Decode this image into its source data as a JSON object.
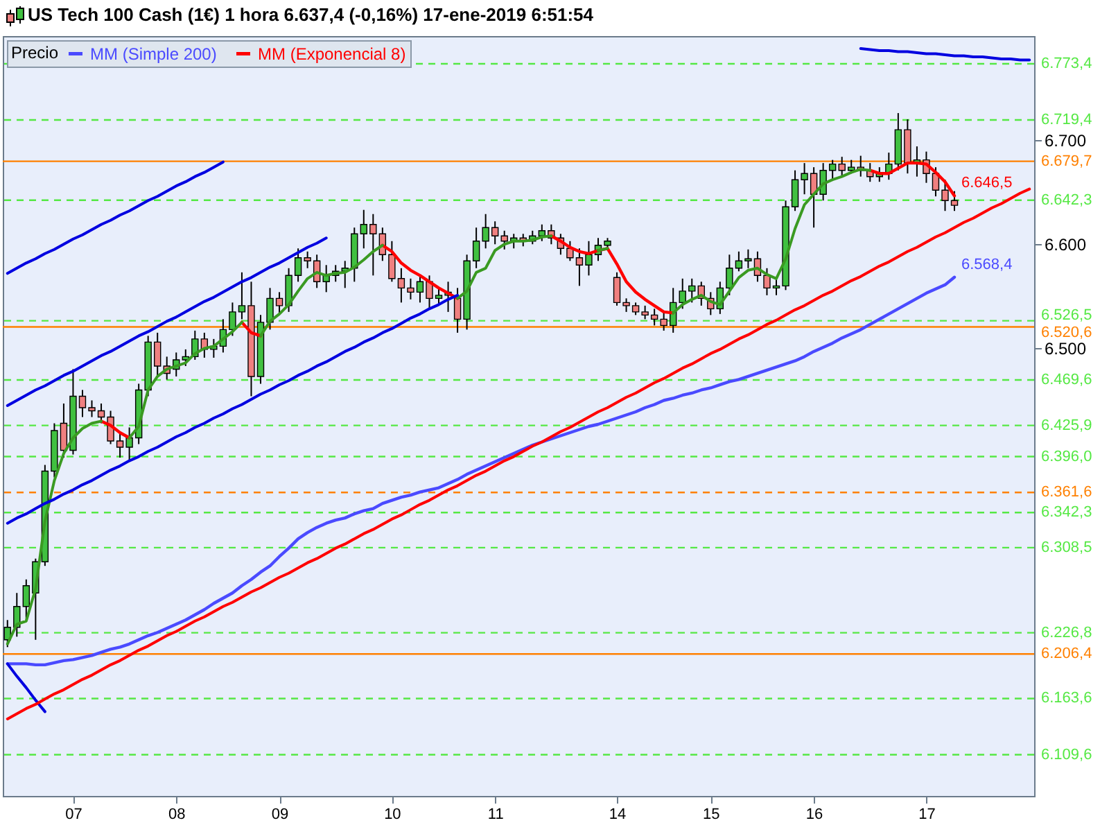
{
  "chart_data": {
    "type": "candlestick",
    "title": "US Tech 100 Cash (1€) 1 hora 6.637,4 (-0,16%) 17-ene-2019 6:51:54",
    "legend_title": "Precio",
    "legend": "top left",
    "ylim": [
      6070,
      6800
    ],
    "yticks": [
      {
        "value": 6500,
        "label": "6.500"
      },
      {
        "value": 6600,
        "label": "6.600"
      },
      {
        "value": 6700,
        "label": "6.700"
      }
    ],
    "categories": [
      null,
      null,
      null,
      null,
      null,
      null,
      null,
      "07",
      null,
      null,
      null,
      null,
      null,
      null,
      null,
      null,
      null,
      null,
      "08",
      null,
      null,
      null,
      null,
      null,
      null,
      null,
      null,
      null,
      null,
      "09",
      null,
      null,
      null,
      null,
      null,
      null,
      null,
      null,
      null,
      null,
      null,
      "10",
      null,
      null,
      null,
      null,
      null,
      null,
      null,
      null,
      null,
      null,
      "11",
      null,
      null,
      null,
      null,
      null,
      null,
      null,
      null,
      null,
      null,
      null,
      null,
      "14",
      null,
      null,
      null,
      null,
      null,
      null,
      null,
      null,
      null,
      "15",
      null,
      null,
      null,
      null,
      null,
      null,
      null,
      null,
      null,
      null,
      "16",
      null,
      null,
      null,
      null,
      null,
      null,
      null,
      null,
      null,
      null,
      null,
      "17",
      null,
      null,
      null,
      null,
      null,
      null,
      null,
      null,
      null,
      null,
      null
    ],
    "ohlc": [
      [
        6220,
        6239,
        6213,
        6232
      ],
      [
        6232,
        6265,
        6223,
        6252
      ],
      [
        6252,
        6278,
        6239,
        6272
      ],
      [
        6265,
        6298,
        6220,
        6295
      ],
      [
        6295,
        6388,
        6291,
        6382
      ],
      [
        6382,
        6428,
        6376,
        6421
      ],
      [
        6428,
        6447,
        6395,
        6402
      ],
      [
        6402,
        6480,
        6398,
        6454
      ],
      [
        6454,
        6460,
        6434,
        6443
      ],
      [
        6443,
        6450,
        6434,
        6440
      ],
      [
        6440,
        6447,
        6428,
        6434
      ],
      [
        6434,
        6440,
        6408,
        6411
      ],
      [
        6411,
        6418,
        6395,
        6405
      ],
      [
        6405,
        6424,
        6391,
        6414
      ],
      [
        6414,
        6466,
        6408,
        6460
      ],
      [
        6460,
        6512,
        6454,
        6506
      ],
      [
        6506,
        6515,
        6473,
        6483
      ],
      [
        6483,
        6492,
        6470,
        6476
      ],
      [
        6480,
        6496,
        6473,
        6489
      ],
      [
        6489,
        6499,
        6483,
        6492
      ],
      [
        6492,
        6517,
        6489,
        6509
      ],
      [
        6509,
        6515,
        6491,
        6499
      ],
      [
        6499,
        6509,
        6491,
        6502
      ],
      [
        6502,
        6528,
        6496,
        6518
      ],
      [
        6518,
        6544,
        6512,
        6535
      ],
      [
        6535,
        6573,
        6528,
        6541
      ],
      [
        6541,
        6564,
        6454,
        6473
      ],
      [
        6473,
        6532,
        6466,
        6525
      ],
      [
        6525,
        6558,
        6518,
        6548
      ],
      [
        6548,
        6554,
        6532,
        6541
      ],
      [
        6541,
        6577,
        6535,
        6570
      ],
      [
        6570,
        6596,
        6564,
        6587
      ],
      [
        6587,
        6593,
        6577,
        6584
      ],
      [
        6584,
        6590,
        6558,
        6564
      ],
      [
        6564,
        6580,
        6554,
        6570
      ],
      [
        6570,
        6580,
        6564,
        6574
      ],
      [
        6574,
        6584,
        6558,
        6577
      ],
      [
        6577,
        6616,
        6564,
        6610
      ],
      [
        6610,
        6633,
        6596,
        6619
      ],
      [
        6619,
        6629,
        6570,
        6610
      ],
      [
        6610,
        6616,
        6584,
        6590
      ],
      [
        6590,
        6603,
        6564,
        6567
      ],
      [
        6567,
        6577,
        6544,
        6558
      ],
      [
        6558,
        6567,
        6547,
        6554
      ],
      [
        6554,
        6570,
        6544,
        6564
      ],
      [
        6564,
        6570,
        6538,
        6548
      ],
      [
        6548,
        6558,
        6541,
        6551
      ],
      [
        6551,
        6564,
        6535,
        6554
      ],
      [
        6548,
        6558,
        6515,
        6528
      ],
      [
        6528,
        6590,
        6518,
        6584
      ],
      [
        6584,
        6616,
        6577,
        6603
      ],
      [
        6603,
        6629,
        6596,
        6616
      ],
      [
        6616,
        6622,
        6600,
        6608
      ],
      [
        6608,
        6613,
        6595,
        6603
      ],
      [
        6603,
        6610,
        6596,
        6606
      ],
      [
        6606,
        6610,
        6598,
        6603
      ],
      [
        6603,
        6613,
        6600,
        6608
      ],
      [
        6608,
        6619,
        6603,
        6613
      ],
      [
        6613,
        6619,
        6600,
        6606
      ],
      [
        6606,
        6610,
        6590,
        6596
      ],
      [
        6596,
        6603,
        6584,
        6587
      ],
      [
        6587,
        6596,
        6560,
        6580
      ],
      [
        6580,
        6603,
        6570,
        6590
      ],
      [
        6590,
        6606,
        6584,
        6599
      ],
      [
        6599,
        6606,
        6596,
        6603
      ],
      [
        6568,
        6573,
        6541,
        6544
      ],
      [
        6544,
        6548,
        6535,
        6541
      ],
      [
        6541,
        6544,
        6532,
        6535
      ],
      [
        6535,
        6541,
        6528,
        6532
      ],
      [
        6532,
        6538,
        6522,
        6528
      ],
      [
        6528,
        6535,
        6517,
        6522
      ],
      [
        6522,
        6558,
        6515,
        6544
      ],
      [
        6544,
        6567,
        6538,
        6555
      ],
      [
        6555,
        6567,
        6544,
        6560
      ],
      [
        6560,
        6564,
        6541,
        6548
      ],
      [
        6548,
        6554,
        6532,
        6538
      ],
      [
        6538,
        6564,
        6533,
        6558
      ],
      [
        6558,
        6590,
        6551,
        6577
      ],
      [
        6577,
        6593,
        6574,
        6584
      ],
      [
        6584,
        6595,
        6577,
        6586
      ],
      [
        6586,
        6593,
        6564,
        6570
      ],
      [
        6570,
        6577,
        6551,
        6558
      ],
      [
        6558,
        6567,
        6551,
        6560
      ],
      [
        6560,
        6642,
        6556,
        6636
      ],
      [
        6636,
        6671,
        6632,
        6662
      ],
      [
        6662,
        6678,
        6648,
        6668
      ],
      [
        6668,
        6674,
        6616,
        6648
      ],
      [
        6648,
        6678,
        6642,
        6671
      ],
      [
        6671,
        6681,
        6662,
        6677
      ],
      [
        6677,
        6684,
        6665,
        6671
      ],
      [
        6671,
        6681,
        6668,
        6674
      ],
      [
        6674,
        6685,
        6665,
        6671
      ],
      [
        6671,
        6678,
        6660,
        6665
      ],
      [
        6665,
        6674,
        6660,
        6668
      ],
      [
        6668,
        6688,
        6662,
        6677
      ],
      [
        6677,
        6726,
        6671,
        6710
      ],
      [
        6710,
        6720,
        6668,
        6678
      ],
      [
        6678,
        6694,
        6665,
        6681
      ],
      [
        6681,
        6689,
        6659,
        6668
      ],
      [
        6668,
        6674,
        6646,
        6652
      ],
      [
        6652,
        6662,
        6632,
        6642
      ],
      [
        6642,
        6651,
        6632,
        6637.4
      ],
      null,
      null,
      null,
      null,
      null,
      null,
      null,
      null
    ],
    "series": [
      {
        "name": "MM (Simple 200)",
        "type": "line",
        "color": "#4a4aff",
        "values": [
          6197,
          6197,
          6197,
          6196,
          6196,
          6198,
          6200,
          6201,
          6203,
          6205,
          6208,
          6211,
          6213,
          6216,
          6220,
          6224,
          6227,
          6231,
          6235,
          6239,
          6244,
          6249,
          6255,
          6260,
          6265,
          6272,
          6278,
          6285,
          6291,
          6300,
          6308,
          6317,
          6323,
          6328,
          6332,
          6335,
          6337,
          6341,
          6344,
          6346,
          6351,
          6354,
          6357,
          6359,
          6362,
          6364,
          6366,
          6370,
          6374,
          6379,
          6383,
          6387,
          6391,
          6395,
          6399,
          6403,
          6407,
          6410,
          6413,
          6416,
          6419,
          6422,
          6425,
          6427,
          6430,
          6433,
          6436,
          6439,
          6443,
          6446,
          6450,
          6452,
          6455,
          6457,
          6460,
          6462,
          6465,
          6468,
          6470,
          6473,
          6476,
          6479,
          6482,
          6485,
          6488,
          6492,
          6497,
          6501,
          6505,
          6510,
          6514,
          6518,
          6523,
          6528,
          6533,
          6538,
          6543,
          6548,
          6553,
          6557,
          6561,
          6568.4,
          null,
          null,
          null,
          null,
          null,
          null,
          null,
          null
        ],
        "value_labels": [
          null,
          null,
          null,
          null,
          null,
          null,
          null,
          null,
          null,
          null,
          null,
          null,
          null,
          null,
          null,
          null,
          null,
          null,
          null,
          null,
          null,
          null,
          null,
          null,
          null,
          null,
          null,
          null,
          null,
          null,
          null,
          null,
          null,
          null,
          null,
          null,
          null,
          null,
          null,
          null,
          null,
          null,
          null,
          null,
          null,
          null,
          null,
          null,
          null,
          null,
          null,
          null,
          null,
          null,
          null,
          null,
          null,
          null,
          null,
          null,
          null,
          null,
          null,
          null,
          null,
          null,
          null,
          null,
          null,
          null,
          null,
          null,
          null,
          null,
          null,
          null,
          null,
          null,
          null,
          null,
          null,
          null,
          null,
          null,
          null,
          null,
          null,
          null,
          null,
          null,
          null,
          null,
          null,
          null,
          null,
          null,
          null,
          null,
          null,
          null,
          null,
          "6.568,4",
          null,
          null,
          null,
          null,
          null,
          null,
          null,
          null
        ]
      },
      {
        "name": "MM (Exponencial 8)",
        "type": "line",
        "color": "#ff0000",
        "values": [
          null,
          null,
          null,
          null,
          null,
          null,
          null,
          null,
          null,
          null,
          6430,
          6426,
          6419,
          6414,
          null,
          null,
          null,
          null,
          null,
          null,
          null,
          null,
          null,
          null,
          null,
          6525,
          6515,
          6512,
          null,
          null,
          null,
          null,
          null,
          null,
          null,
          null,
          null,
          null,
          null,
          null,
          6599,
          6593,
          6582,
          6575,
          6570,
          6564,
          6558,
          6553,
          6548,
          null,
          null,
          null,
          null,
          null,
          null,
          null,
          null,
          null,
          6608,
          6603,
          6597,
          6593,
          6591,
          6594,
          6596,
          6581,
          6564,
          6554,
          6547,
          6541,
          6535,
          6534,
          null,
          null,
          null,
          null,
          null,
          null,
          null,
          null,
          null,
          null,
          null,
          null,
          null,
          null,
          null,
          null,
          null,
          null,
          null,
          null,
          6671,
          6668,
          6668,
          6673,
          6678,
          6678,
          6677,
          6669,
          6660,
          6646.5,
          null,
          null,
          null,
          null,
          null,
          null,
          null,
          null
        ],
        "value_labels": [
          null,
          null,
          null,
          null,
          null,
          null,
          null,
          null,
          null,
          null,
          null,
          null,
          null,
          null,
          null,
          null,
          null,
          null,
          null,
          null,
          null,
          null,
          null,
          null,
          null,
          null,
          null,
          null,
          null,
          null,
          null,
          null,
          null,
          null,
          null,
          null,
          null,
          null,
          null,
          null,
          null,
          null,
          null,
          null,
          null,
          null,
          null,
          null,
          null,
          null,
          null,
          null,
          null,
          null,
          null,
          null,
          null,
          null,
          null,
          null,
          null,
          null,
          null,
          null,
          null,
          null,
          null,
          null,
          null,
          null,
          null,
          null,
          null,
          null,
          null,
          null,
          null,
          null,
          null,
          null,
          null,
          null,
          null,
          null,
          null,
          null,
          null,
          null,
          null,
          null,
          null,
          null,
          null,
          null,
          null,
          null,
          null,
          null,
          null,
          null,
          null,
          "6.646,5",
          null,
          null,
          null,
          null,
          null,
          null,
          null,
          null
        ]
      },
      {
        "type": "line",
        "color": "#3a9a22",
        "values": [
          6216,
          6235,
          6238,
          6269,
          6334,
          6373,
          6399,
          6414,
          6423,
          6428,
          6430,
          null,
          null,
          6414,
          6425,
          6460,
          6473,
          6480,
          6483,
          6486,
          6495,
          6500,
          6502,
          6509,
          6516,
          6525,
          null,
          6512,
          6526,
          6533,
          6542,
          6555,
          6567,
          6573,
          6570,
          6572,
          6573,
          6578,
          6585,
          6593,
          6599,
          null,
          null,
          null,
          null,
          null,
          null,
          null,
          6548,
          6555,
          6573,
          6577,
          6594,
          6600,
          6603,
          6603,
          6604,
          6607,
          6608,
          null,
          null,
          null,
          null,
          6594,
          6596,
          null,
          null,
          null,
          null,
          null,
          null,
          6534,
          6542,
          6547,
          6551,
          6545,
          6542,
          6555,
          6568,
          6575,
          6577,
          6571,
          6567,
          6586,
          6615,
          6638,
          6648,
          6658,
          6662,
          6665,
          6669,
          6672,
          6671,
          null,
          null,
          null,
          null,
          null,
          null,
          null,
          null,
          null,
          null,
          null,
          null,
          null,
          null,
          null,
          null,
          null
        ]
      },
      {
        "type": "line",
        "color": "#0000e0",
        "values": [
          6572,
          6577,
          6582,
          6586,
          6591,
          6595,
          6600,
          6605,
          6609,
          6614,
          6619,
          6623,
          6628,
          6632,
          6637,
          6642,
          6646,
          6651,
          6656,
          6660,
          6665,
          6669,
          6674,
          6679,
          null,
          null,
          null,
          null,
          null,
          null,
          null,
          null,
          null,
          null,
          null,
          null,
          null,
          null,
          null,
          null,
          null,
          null,
          null,
          null,
          null,
          null,
          null,
          null,
          null,
          null,
          null,
          null,
          null,
          null,
          null,
          null,
          null,
          null,
          null,
          null,
          null,
          null,
          null,
          null,
          null,
          null,
          null,
          null,
          null,
          null,
          null,
          null,
          null,
          null,
          null,
          null,
          null,
          null,
          null,
          null,
          null,
          null,
          null,
          null,
          null,
          null,
          null,
          null,
          null,
          null,
          null,
          null,
          null,
          null,
          null,
          null,
          null,
          null,
          null,
          null,
          null,
          null,
          null,
          null,
          null,
          null,
          null,
          null,
          null,
          null
        ]
      },
      {
        "type": "line",
        "color": "#0000e0",
        "values": [
          6445,
          6450,
          6455,
          6460,
          6464,
          6469,
          6474,
          6478,
          6483,
          6488,
          6493,
          6497,
          6502,
          6507,
          6512,
          6516,
          6521,
          6526,
          6530,
          6535,
          6540,
          6545,
          6549,
          6554,
          6559,
          6564,
          6568,
          6573,
          6578,
          6582,
          6587,
          6592,
          6597,
          6601,
          6606,
          null,
          null,
          null,
          null,
          null,
          null,
          null,
          null,
          null,
          null,
          null,
          null,
          null,
          null,
          null,
          null,
          null,
          null,
          null,
          null,
          null,
          null,
          null,
          null,
          null,
          null,
          null,
          null,
          null,
          null,
          null,
          null,
          null,
          null,
          null,
          null,
          null,
          null,
          null,
          null,
          null,
          null,
          null,
          null,
          null,
          null,
          null,
          null,
          null,
          null,
          null,
          null,
          null,
          null,
          null,
          null,
          null,
          null,
          null,
          null,
          null,
          null,
          null,
          null,
          null,
          null,
          null,
          null,
          null,
          null,
          null,
          null,
          null,
          null,
          null
        ]
      },
      {
        "type": "line",
        "color": "#0000e0",
        "values": [
          6332,
          6337,
          6341,
          6346,
          6351,
          6355,
          6360,
          6364,
          6369,
          6373,
          6378,
          6383,
          6387,
          6392,
          6396,
          6401,
          6405,
          6410,
          6415,
          6419,
          6424,
          6428,
          6433,
          6437,
          6442,
          6446,
          6451,
          6456,
          6460,
          6465,
          6469,
          6474,
          6478,
          6483,
          6487,
          6492,
          6497,
          6501,
          6506,
          6510,
          6515,
          6519,
          6524,
          6529,
          6533,
          6538,
          6542,
          6547,
          6551,
          null,
          null,
          null,
          null,
          null,
          null,
          null,
          null,
          null,
          null,
          null,
          null,
          null,
          null,
          null,
          null,
          null,
          null,
          null,
          null,
          null,
          null,
          null,
          null,
          null,
          null,
          null,
          null,
          null,
          null,
          null,
          null,
          null,
          null,
          null,
          null,
          null,
          null,
          null,
          null,
          null,
          null,
          null,
          null,
          null,
          null,
          null,
          null,
          null,
          null,
          null,
          null,
          null,
          null,
          null,
          null,
          null,
          null,
          null,
          null,
          null
        ]
      },
      {
        "type": "line",
        "color": "#0000e0",
        "values": [
          6197,
          6185,
          6174,
          6162,
          6151,
          null,
          null,
          null,
          null,
          null,
          null,
          null,
          null,
          null,
          null,
          null,
          null,
          null,
          null,
          null,
          null,
          null,
          null,
          null,
          null,
          null,
          null,
          null,
          null,
          null,
          null,
          null,
          null,
          null,
          null,
          null,
          null,
          null,
          null,
          null,
          null,
          null,
          null,
          null,
          null,
          null,
          null,
          null,
          null,
          null,
          null,
          null,
          null,
          null,
          null,
          null,
          null,
          null,
          null,
          null,
          null,
          null,
          null,
          null,
          null,
          null,
          null,
          null,
          null,
          null,
          null,
          null,
          null,
          null,
          null,
          null,
          null,
          null,
          null,
          null,
          null,
          null,
          null,
          null,
          null,
          null,
          null,
          null,
          null,
          null,
          null,
          null,
          null,
          null,
          null,
          null,
          null,
          null,
          null,
          null,
          null,
          null,
          null,
          null,
          null,
          null,
          null,
          null,
          null,
          null
        ]
      },
      {
        "type": "line",
        "color": "#0000e0",
        "values": [
          null,
          null,
          null,
          null,
          null,
          null,
          null,
          null,
          null,
          null,
          null,
          null,
          null,
          null,
          null,
          null,
          null,
          null,
          null,
          null,
          null,
          null,
          null,
          null,
          null,
          null,
          null,
          null,
          null,
          null,
          null,
          null,
          null,
          null,
          null,
          null,
          null,
          null,
          null,
          null,
          null,
          null,
          null,
          null,
          null,
          null,
          null,
          null,
          null,
          null,
          null,
          null,
          null,
          null,
          null,
          null,
          null,
          null,
          null,
          null,
          null,
          null,
          null,
          null,
          null,
          null,
          null,
          null,
          null,
          null,
          null,
          null,
          null,
          null,
          null,
          null,
          null,
          null,
          null,
          null,
          null,
          null,
          null,
          null,
          null,
          null,
          null,
          null,
          null,
          null,
          null,
          6788,
          6787,
          6786,
          6786,
          6785,
          6785,
          6784,
          6783,
          6783,
          6782,
          6781,
          6781,
          6780,
          6780,
          6779,
          6778,
          6778,
          6777,
          6777
        ]
      },
      {
        "type": "line",
        "color": "#ff0000",
        "values": [
          6144,
          6149,
          6154,
          6158,
          6163,
          6168,
          6172,
          6177,
          6182,
          6186,
          6191,
          6196,
          6200,
          6205,
          6210,
          6214,
          6219,
          6224,
          6228,
          6233,
          6238,
          6242,
          6247,
          6252,
          6256,
          6261,
          6266,
          6270,
          6275,
          6280,
          6284,
          6289,
          6294,
          6298,
          6303,
          6308,
          6312,
          6317,
          6322,
          6326,
          6331,
          6336,
          6340,
          6345,
          6350,
          6354,
          6359,
          6364,
          6368,
          6373,
          6378,
          6382,
          6387,
          6392,
          6396,
          6401,
          6406,
          6410,
          6415,
          6420,
          6424,
          6429,
          6434,
          6439,
          6443,
          6448,
          6453,
          6457,
          6462,
          6467,
          6471,
          6476,
          6481,
          6485,
          6490,
          6495,
          6499,
          6504,
          6509,
          6513,
          6518,
          6523,
          6527,
          6532,
          6537,
          6541,
          6546,
          6551,
          6555,
          6560,
          6565,
          6569,
          6574,
          6579,
          6583,
          6588,
          6593,
          6597,
          6602,
          6607,
          6611,
          6616,
          6621,
          6625,
          6630,
          6635,
          6639,
          6644,
          6649,
          6653
        ]
      }
    ],
    "ref_lines": [
      {
        "axis": "y",
        "value": 6773.4,
        "label": "6.773,4",
        "color": "#55e844",
        "line_style": "dashed"
      },
      {
        "axis": "y",
        "value": 6719.4,
        "label": "6.719,4",
        "color": "#55e844",
        "line_style": "dashed"
      },
      {
        "axis": "y",
        "value": 6679.7,
        "label": "6.679,7",
        "color": "#ff8000",
        "line_style": "solid"
      },
      {
        "axis": "y",
        "value": 6642.3,
        "label": "6.642,3",
        "color": "#55e844",
        "line_style": "dashed"
      },
      {
        "axis": "y",
        "value": 6526.5,
        "label": "6.526,5",
        "color": "#55e844",
        "line_style": "dashed"
      },
      {
        "axis": "y",
        "value": 6520.6,
        "label": "6.520,6",
        "color": "#ff8000",
        "line_style": "solid"
      },
      {
        "axis": "y",
        "value": 6469.6,
        "label": "6.469,6",
        "color": "#55e844",
        "line_style": "dashed"
      },
      {
        "axis": "y",
        "value": 6425.9,
        "label": "6.425,9",
        "color": "#55e844",
        "line_style": "dashed"
      },
      {
        "axis": "y",
        "value": 6396.0,
        "label": "6.396,0",
        "color": "#55e844",
        "line_style": "dashed"
      },
      {
        "axis": "y",
        "value": 6361.6,
        "label": "6.361,6",
        "color": "#ff8000",
        "line_style": "dashed"
      },
      {
        "axis": "y",
        "value": 6342.3,
        "label": "6.342,3",
        "color": "#55e844",
        "line_style": "dashed"
      },
      {
        "axis": "y",
        "value": 6308.5,
        "label": "6.308,5",
        "color": "#55e844",
        "line_style": "dashed"
      },
      {
        "axis": "y",
        "value": 6226.8,
        "label": "6.226,8",
        "color": "#55e844",
        "line_style": "dashed"
      },
      {
        "axis": "y",
        "value": 6206.4,
        "label": "6.206,4",
        "color": "#ff8000",
        "line_style": "solid"
      },
      {
        "axis": "y",
        "value": 6163.6,
        "label": "6.163,6",
        "color": "#55e844",
        "line_style": "dashed"
      },
      {
        "axis": "y",
        "value": 6109.6,
        "label": "6.109,6",
        "color": "#55e844",
        "line_style": "dashed"
      }
    ]
  }
}
